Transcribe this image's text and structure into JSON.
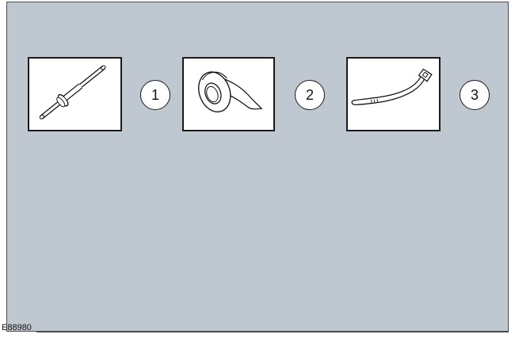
{
  "figure": {
    "reference_id": "E88980",
    "background_color": "#bfc8d0"
  },
  "items": [
    {
      "callout": "1",
      "icon": "rivet-icon"
    },
    {
      "callout": "2",
      "icon": "tape-roll-icon"
    },
    {
      "callout": "3",
      "icon": "cable-tie-icon"
    }
  ]
}
